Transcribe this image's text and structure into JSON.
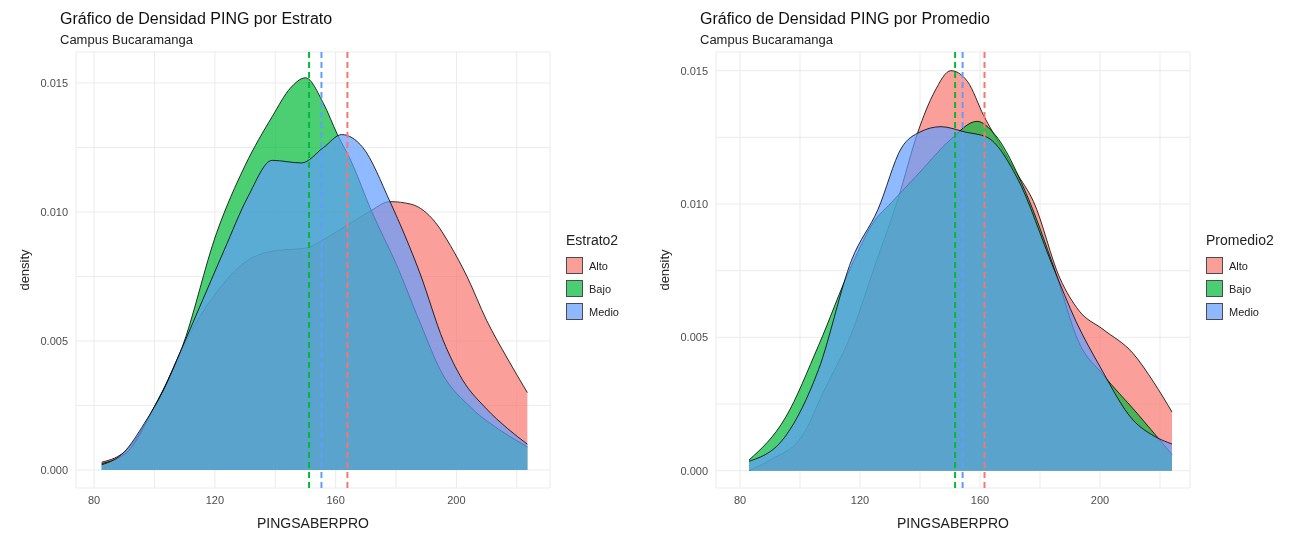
{
  "chart_data": [
    {
      "type": "area",
      "title": "Gráfico de Densidad PING por Estrato",
      "subtitle": "Campus Bucaramanga",
      "xlabel": "PINGSABERPRO",
      "ylabel": "density",
      "legend_title": "Estrato2",
      "legend": "right",
      "grid": true,
      "xlim": [
        74,
        231
      ],
      "xticks": [
        80,
        {
          "value": 100,
          "label": null
        },
        120,
        {
          "value": 140,
          "label": null
        },
        160,
        {
          "value": 180,
          "label": null
        },
        200,
        {
          "value": 220,
          "label": null
        }
      ],
      "ylim": [
        -0.0007,
        0.0162
      ],
      "yticks": [
        {
          "value": 0,
          "label": "0.000"
        },
        {
          "value": 0.0025,
          "label": null
        },
        {
          "value": 0.005,
          "label": "0.005"
        },
        {
          "value": 0.0075,
          "label": null
        },
        {
          "value": 0.01,
          "label": "0.010"
        },
        {
          "value": 0.0125,
          "label": null
        },
        {
          "value": 0.015,
          "label": "0.015"
        }
      ],
      "series": [
        {
          "name": "Alto",
          "color": "#f8766d",
          "x": [
            82.5,
            91,
            101.6,
            110.4,
            120,
            130.6,
            140,
            150,
            157,
            164,
            171,
            178,
            185,
            193,
            198,
            203.5,
            210,
            217,
            223.5
          ],
          "values": [
            0.0003,
            0.0008,
            0.0028,
            0.005,
            0.0068,
            0.0081,
            0.0085,
            0.0086,
            0.009,
            0.0095,
            0.01,
            0.0104,
            0.0103,
            0.0096,
            0.0087,
            0.0075,
            0.0058,
            0.0043,
            0.003
          ]
        },
        {
          "name": "Bajo",
          "color": "#00ba38",
          "x": [
            82.5,
            91,
            99.7,
            109,
            120.6,
            130,
            139,
            145,
            150,
            156,
            160.6,
            165,
            172,
            180,
            188,
            195,
            205,
            215,
            223.5
          ],
          "values": [
            0.00025,
            0.0007,
            0.0024,
            0.0047,
            0.0092,
            0.0118,
            0.0137,
            0.0148,
            0.0152,
            0.0142,
            0.013,
            0.012,
            0.01,
            0.008,
            0.0057,
            0.0038,
            0.0024,
            0.0015,
            0.0009
          ]
        },
        {
          "name": "Medio",
          "color": "#619cff",
          "x": [
            82.5,
            90,
            96.6,
            103,
            109,
            116,
            123,
            131,
            139,
            148.7,
            156,
            162,
            169,
            178,
            188,
            195.7,
            202,
            209.7,
            217,
            223.5
          ],
          "values": [
            0.0002,
            0.0007,
            0.0018,
            0.0031,
            0.0047,
            0.0066,
            0.0085,
            0.0106,
            0.012,
            0.0119,
            0.0125,
            0.013,
            0.0125,
            0.0104,
            0.0076,
            0.005,
            0.0035,
            0.0024,
            0.0016,
            0.001
          ]
        }
      ],
      "ref_lines": [
        {
          "axis": "x",
          "value": 151.2,
          "color": "#00ba38",
          "line_style": "dashed"
        },
        {
          "axis": "x",
          "value": 155.3,
          "color": "#619cff",
          "line_style": "dashed"
        },
        {
          "axis": "x",
          "value": 163.9,
          "color": "#f8766d",
          "line_style": "dashed"
        }
      ]
    },
    {
      "type": "area",
      "title": "Gráfico de Densidad PING por Promedio",
      "subtitle": "Campus Bucaramanga",
      "xlabel": "PINGSABERPRO",
      "ylabel": "density",
      "legend_title": "Promedio2",
      "legend": "right",
      "grid": true,
      "xlim": [
        72,
        230
      ],
      "xticks": [
        80,
        {
          "value": 100,
          "label": null
        },
        120,
        {
          "value": 140,
          "label": null
        },
        160,
        {
          "value": 180,
          "label": null
        },
        200,
        {
          "value": 220,
          "label": null
        }
      ],
      "ylim": [
        -0.00065,
        0.0157
      ],
      "yticks": [
        {
          "value": 0,
          "label": "0.000"
        },
        {
          "value": 0.0025,
          "label": null
        },
        {
          "value": 0.005,
          "label": "0.005"
        },
        {
          "value": 0.0075,
          "label": null
        },
        {
          "value": 0.01,
          "label": "0.010"
        },
        {
          "value": 0.0125,
          "label": null
        },
        {
          "value": 0.015,
          "label": "0.015"
        }
      ],
      "series": [
        {
          "name": "Alto",
          "color": "#f8766d",
          "x": [
            83,
            90,
            100.7,
            108,
            117,
            125,
            132.7,
            139.3,
            144.8,
            150.3,
            155.8,
            161.3,
            166.8,
            172,
            177.8,
            186.7,
            193,
            201,
            211,
            218,
            224
          ],
          "values": [
            0.0,
            0.0004,
            0.0013,
            0.003,
            0.0051,
            0.0077,
            0.0102,
            0.0127,
            0.0142,
            0.015,
            0.0146,
            0.0133,
            0.0122,
            0.0112,
            0.0101,
            0.0072,
            0.006,
            0.0053,
            0.0044,
            0.0033,
            0.0022
          ]
        },
        {
          "name": "Bajo",
          "color": "#00ba38",
          "x": [
            83,
            95.2,
            106.2,
            117.2,
            125,
            130,
            140,
            150,
            159,
            165,
            175,
            185,
            193,
            201,
            212,
            224
          ],
          "values": [
            0.0004,
            0.002,
            0.0047,
            0.0077,
            0.0094,
            0.01,
            0.0112,
            0.0124,
            0.0131,
            0.0126,
            0.0105,
            0.0075,
            0.0048,
            0.0036,
            0.0022,
            0.0006
          ]
        },
        {
          "name": "Medio",
          "color": "#619cff",
          "x": [
            83,
            95.2,
            106.2,
            117.2,
            126,
            133.8,
            140,
            147,
            155,
            162.4,
            172.3,
            184.5,
            192,
            200,
            211,
            218,
            224
          ],
          "values": [
            0.00035,
            0.0013,
            0.0038,
            0.0079,
            0.0098,
            0.0121,
            0.0127,
            0.0129,
            0.0127,
            0.0125,
            0.011,
            0.0076,
            0.0056,
            0.0039,
            0.0019,
            0.0013,
            0.001
          ]
        }
      ],
      "ref_lines": [
        {
          "axis": "x",
          "value": 151.7,
          "color": "#00ba38",
          "line_style": "dashed"
        },
        {
          "axis": "x",
          "value": 154.2,
          "color": "#619cff",
          "line_style": "dashed"
        },
        {
          "axis": "x",
          "value": 161.5,
          "color": "#f8766d",
          "line_style": "dashed"
        }
      ]
    }
  ]
}
